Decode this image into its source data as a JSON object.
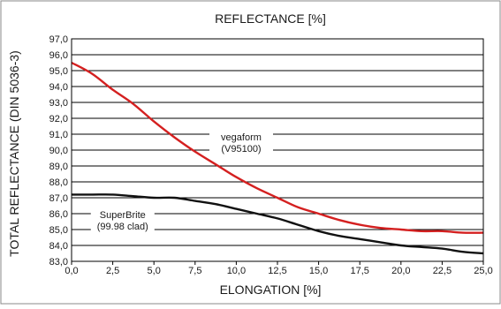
{
  "chart_data": {
    "type": "line",
    "title": "REFLECTANCE [%]",
    "xlabel": "ELONGATION [%]",
    "ylabel": "TOTAL REFLECTANCE (DIN 5036-3)",
    "xlim": [
      0,
      25
    ],
    "ylim": [
      83,
      97
    ],
    "x_ticks": [
      0,
      2.5,
      5,
      7.5,
      10,
      12.5,
      15,
      17.5,
      20,
      22.5,
      25
    ],
    "x_tick_labels": [
      "0,0",
      "2,5",
      "5,0",
      "7,5",
      "10,0",
      "12,5",
      "15,0",
      "17,5",
      "20,0",
      "22,5",
      "25,0"
    ],
    "y_ticks": [
      83,
      84,
      85,
      86,
      87,
      88,
      89,
      90,
      91,
      92,
      93,
      94,
      95,
      96,
      97
    ],
    "y_tick_labels": [
      "83,0",
      "84,0",
      "85,0",
      "86,0",
      "87,0",
      "88,0",
      "89,0",
      "90,0",
      "91,0",
      "92,0",
      "93,0",
      "94,0",
      "95,0",
      "96,0",
      "97,0"
    ],
    "grid": "horizontal",
    "series": [
      {
        "name": "vegaform\n(V95100)",
        "label_lines": [
          "vegaform",
          "(V95100)"
        ],
        "color": "#d42020",
        "x": [
          0,
          1.25,
          2.5,
          3.75,
          5,
          6.25,
          7.5,
          8.75,
          10,
          11.25,
          12.5,
          13.75,
          15,
          16.25,
          17.5,
          18.75,
          20,
          21.25,
          22.5,
          23.75,
          25
        ],
        "values": [
          95.5,
          94.8,
          93.8,
          92.9,
          91.8,
          90.8,
          89.9,
          89.1,
          88.3,
          87.6,
          87.0,
          86.4,
          86.0,
          85.6,
          85.3,
          85.1,
          85.0,
          84.9,
          84.9,
          84.8,
          84.8
        ]
      },
      {
        "name": "SuperBrite\n(99.98 clad)",
        "label_lines": [
          "SuperBrite",
          "(99.98 clad)"
        ],
        "color": "#111111",
        "x": [
          0,
          1.25,
          2.5,
          3.75,
          5,
          6.25,
          7.5,
          8.75,
          10,
          11.25,
          12.5,
          13.75,
          15,
          16.25,
          17.5,
          18.75,
          20,
          21.25,
          22.5,
          23.75,
          25
        ],
        "values": [
          87.2,
          87.2,
          87.2,
          87.1,
          87.0,
          87.0,
          86.8,
          86.6,
          86.3,
          86.0,
          85.7,
          85.3,
          84.9,
          84.6,
          84.4,
          84.2,
          84.0,
          83.9,
          83.8,
          83.6,
          83.5
        ]
      }
    ]
  }
}
